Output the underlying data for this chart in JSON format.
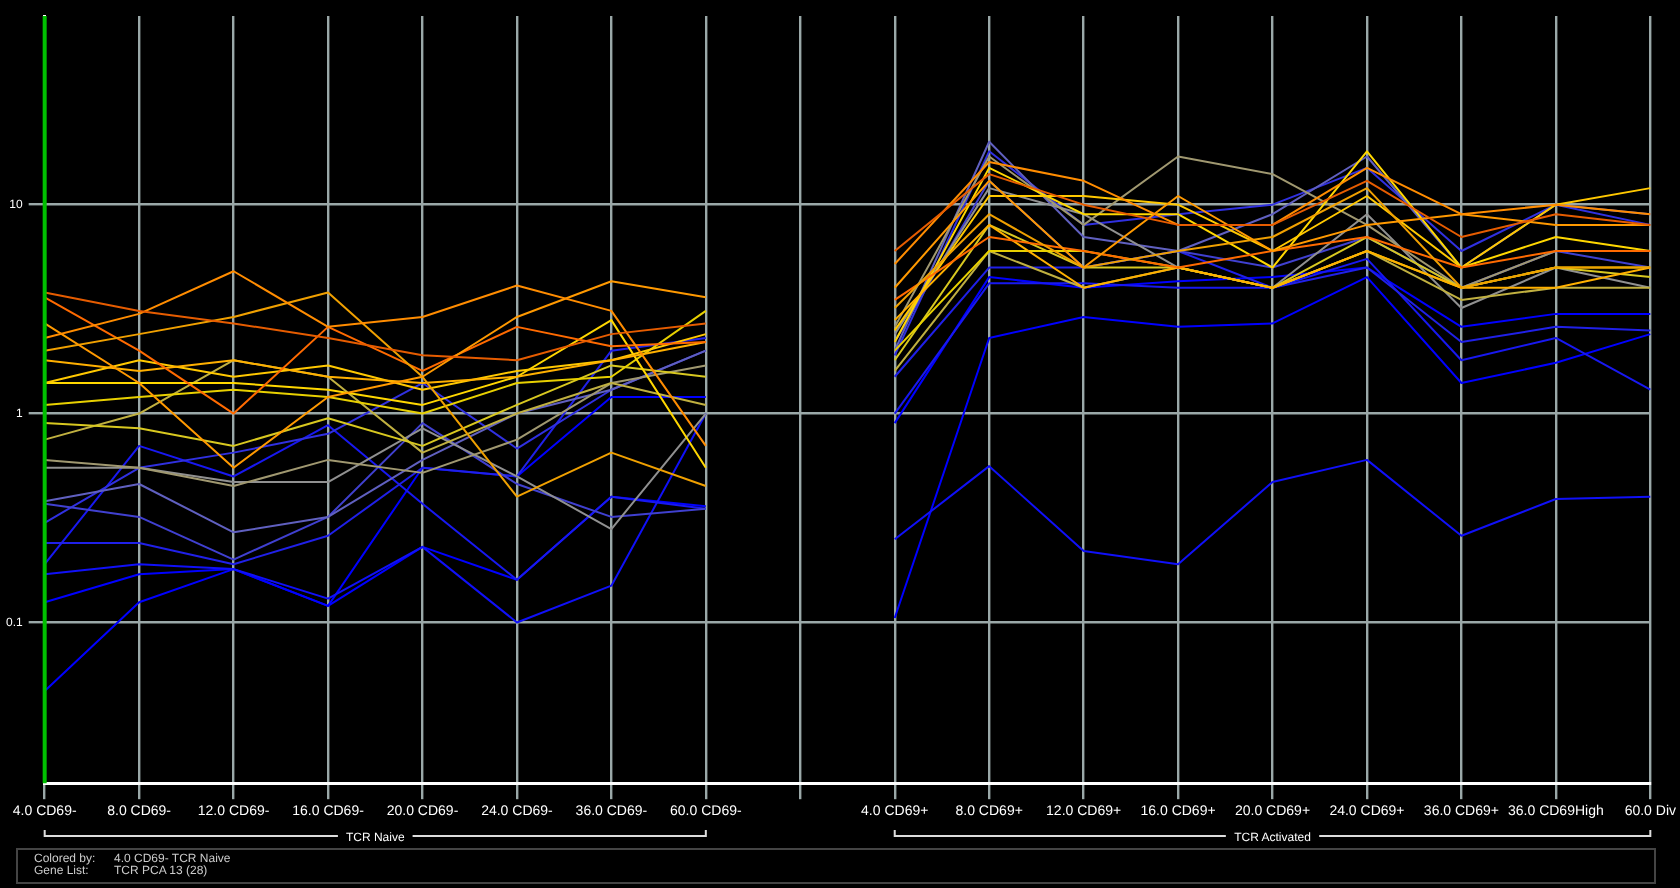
{
  "chart_data": {
    "type": "line",
    "log": "y",
    "grid": true,
    "legend": false,
    "marker": "none",
    "line_style": "solid",
    "categories": [
      "4.0 CD69-",
      "8.0 CD69-",
      "12.0 CD69-",
      "16.0 CD69-",
      "20.0 CD69-",
      "24.0 CD69-",
      "36.0 CD69-",
      "60.0 CD69-",
      null,
      "4.0 CD69+",
      "8.0 CD69+",
      "12.0 CD69+",
      "16.0 CD69+",
      "20.0 CD69+",
      "24.0 CD69+",
      "36.0 CD69+",
      "36.0 CD69High",
      "60.0 Div"
    ],
    "ylim": [
      0.017,
      80
    ],
    "yticks": [
      0.1,
      1,
      10
    ],
    "ref_lines": [
      {
        "axis": "x",
        "value": "4.0 CD69-",
        "color": "#00c000"
      }
    ],
    "annotations": [
      "TCR Naive",
      "TCR Activated",
      "Colored by:",
      "4.0 CD69- TCR Naive",
      "Gene List:",
      "TCR PCA 13 (28)"
    ],
    "series": [
      {
        "color": "#e65c00",
        "values": [
          3.8,
          3.1,
          2.7,
          2.3,
          1.9,
          1.8,
          2.4,
          2.7,
          null,
          6,
          14,
          10,
          8,
          8,
          13,
          7,
          9,
          8
        ]
      },
      {
        "color": "#ff8c00",
        "values": [
          2.3,
          3.0,
          4.8,
          2.6,
          2.9,
          4.1,
          3.1,
          0.7,
          null,
          5.2,
          16,
          13,
          8,
          8,
          15,
          9,
          10,
          9
        ]
      },
      {
        "color": "#ff9900",
        "values": [
          2.7,
          1.4,
          0.55,
          1.2,
          1.5,
          2.9,
          4.3,
          3.6,
          null,
          4,
          13,
          5,
          11,
          6,
          8,
          9,
          8,
          8
        ]
      },
      {
        "color": "#f0a000",
        "values": [
          2.0,
          2.4,
          2.9,
          3.8,
          1.5,
          0.4,
          0.65,
          0.45,
          null,
          3.2,
          9,
          5,
          6,
          7,
          12,
          4,
          5,
          5
        ]
      },
      {
        "color": "#ff6a00",
        "values": [
          3.6,
          2.0,
          1.0,
          2.6,
          1.6,
          2.6,
          2.1,
          2.2,
          null,
          3.5,
          7,
          6,
          5,
          6,
          7,
          5,
          6,
          6
        ]
      },
      {
        "color": "#ffb000",
        "values": [
          1.8,
          1.6,
          1.8,
          1.5,
          1.4,
          1.5,
          1.8,
          2.2,
          null,
          2.8,
          8,
          4,
          5,
          4,
          6,
          4,
          4,
          5
        ]
      },
      {
        "color": "#ffc800",
        "values": [
          1.4,
          1.8,
          1.5,
          1.7,
          1.3,
          1.6,
          1.8,
          2.4,
          null,
          2.5,
          11,
          11,
          10,
          6,
          11,
          5,
          10,
          12
        ]
      },
      {
        "color": "#ffd700",
        "values": [
          1.4,
          1.4,
          1.4,
          1.3,
          1.1,
          1.5,
          2.8,
          0.55,
          null,
          2.2,
          15,
          9,
          9,
          5,
          18,
          5,
          7,
          6
        ]
      },
      {
        "color": "#e8d000",
        "values": [
          1.1,
          1.2,
          1.3,
          1.2,
          1.0,
          1.4,
          1.5,
          3.1,
          null,
          2.0,
          6,
          6,
          5,
          4,
          6,
          4,
          5,
          5
        ]
      },
      {
        "color": "#d8c820",
        "values": [
          0.9,
          0.85,
          0.7,
          0.95,
          0.7,
          1.1,
          1.7,
          1.5,
          null,
          1.8,
          8,
          5,
          5,
          4,
          7,
          4,
          5,
          4.5
        ]
      },
      {
        "color": "#c0b040",
        "values": [
          0.75,
          1.0,
          1.8,
          1.5,
          0.65,
          1.0,
          1.4,
          1.1,
          null,
          1.6,
          6,
          4,
          5,
          4,
          6,
          3.5,
          4,
          4
        ]
      },
      {
        "color": "#a09870",
        "values": [
          0.6,
          0.55,
          0.45,
          0.6,
          0.52,
          0.75,
          1.4,
          1.7,
          null,
          2.6,
          17,
          8,
          17,
          14,
          8,
          4,
          6,
          6
        ]
      },
      {
        "color": "#909090",
        "values": [
          0.55,
          0.55,
          0.47,
          0.47,
          0.85,
          0.5,
          0.28,
          1.0,
          null,
          2.4,
          12,
          9,
          5,
          4,
          9,
          3.2,
          5,
          4
        ]
      },
      {
        "color": "#6060c0",
        "values": [
          0.38,
          0.46,
          0.27,
          0.32,
          0.6,
          1.0,
          1.3,
          2.0,
          null,
          2.0,
          20,
          7,
          6,
          9,
          17,
          5,
          10,
          9
        ]
      },
      {
        "color": "#4040d0",
        "values": [
          0.37,
          0.32,
          0.2,
          0.32,
          0.9,
          0.46,
          0.32,
          0.35,
          null,
          2.2,
          13,
          5,
          6,
          5,
          7,
          4,
          6,
          5
        ]
      },
      {
        "color": "#3030e0",
        "values": [
          0.3,
          0.55,
          0.65,
          0.8,
          1.4,
          0.68,
          1.3,
          2.0,
          null,
          1.9,
          18,
          8,
          9,
          10,
          15,
          6,
          10,
          8
        ]
      },
      {
        "color": "#2020e8",
        "values": [
          0.24,
          0.24,
          0.19,
          0.26,
          0.55,
          0.5,
          2.0,
          2.3,
          null,
          1.5,
          5,
          5,
          6,
          4,
          5,
          2.2,
          2.6,
          2.5
        ]
      },
      {
        "color": "#1818f0",
        "values": [
          0.19,
          0.7,
          0.5,
          0.88,
          0.37,
          0.16,
          0.4,
          0.35,
          null,
          1.0,
          4.2,
          4.2,
          4,
          4,
          5.5,
          1.8,
          2.3,
          1.3
        ]
      },
      {
        "color": "#1010f8",
        "values": [
          0.17,
          0.19,
          0.18,
          0.13,
          0.23,
          0.1,
          0.15,
          1.0,
          null,
          0.25,
          0.56,
          0.22,
          0.19,
          0.47,
          0.6,
          0.26,
          0.39,
          0.4
        ]
      },
      {
        "color": "#0000ff",
        "values": [
          0.125,
          0.17,
          0.18,
          0.12,
          0.55,
          0.5,
          1.2,
          1.2,
          null,
          0.105,
          2.3,
          2.9,
          2.6,
          2.7,
          4.5,
          1.4,
          1.75,
          2.4
        ]
      },
      {
        "color": "#0000ff",
        "values": [
          0.047,
          0.125,
          0.18,
          0.12,
          0.23,
          0.16,
          0.4,
          0.36,
          null,
          0.9,
          4.5,
          4,
          4.3,
          4.5,
          5,
          2.6,
          3,
          3
        ]
      }
    ]
  }
}
